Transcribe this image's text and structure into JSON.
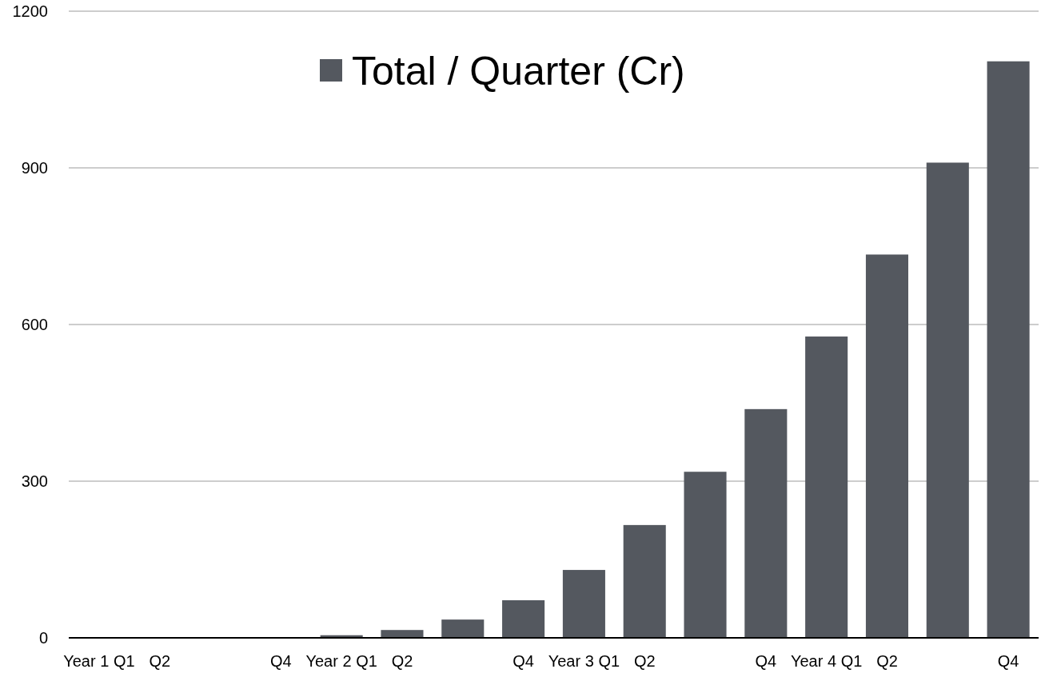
{
  "chart_data": {
    "type": "bar",
    "categories": [
      "Year 1 Q1",
      "Q2",
      null,
      "Q4",
      "Year 2 Q1",
      "Q2",
      null,
      "Q4",
      "Year 3 Q1",
      "Q2",
      null,
      "Q4",
      "Year 4 Q1",
      "Q2",
      null,
      "Q4"
    ],
    "series": [
      {
        "name": "Total / Quarter (Cr)",
        "color": "#54585f",
        "values": [
          0,
          0,
          0,
          0,
          5,
          15,
          35,
          72,
          130,
          216,
          318,
          438,
          577,
          734,
          910,
          1104
        ]
      }
    ],
    "ylim": [
      0,
      1200
    ],
    "yticks": [
      0,
      300,
      600,
      900,
      1200
    ],
    "grid": "y",
    "legend": "top"
  }
}
